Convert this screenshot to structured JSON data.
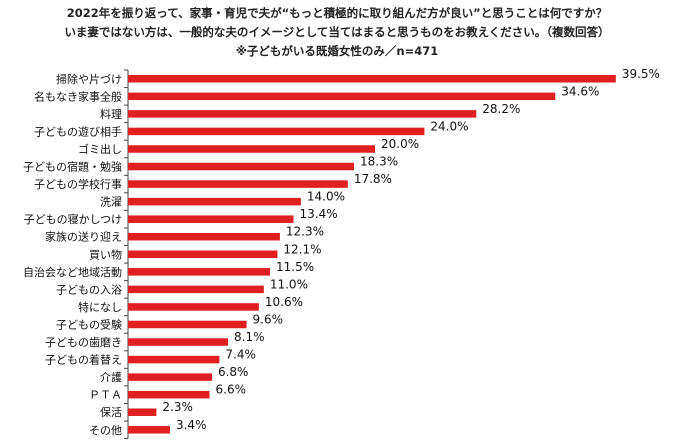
{
  "header": {
    "line1": "2022年を振り返って、家事・育児で夫が“もっと積極的に取り組んだ方が良い”と思うことは何ですか？",
    "line2": "いま妻ではない方は、一般的な夫のイメージとして当てはまると思うものをお教えください。（複数回答）",
    "line3": "※子どもがいる既婚女性のみ／n=471"
  },
  "chart_data": {
    "type": "bar",
    "orientation": "horizontal",
    "bar_color": "#e02020",
    "categories": [
      "掃除や片づけ",
      "名もなき家事全般",
      "料理",
      "子どもの遊び相手",
      "ゴミ出し",
      "子どもの宿題・勉強",
      "子どもの学校行事",
      "洗濯",
      "子どもの寝かしつけ",
      "家族の送り迎え",
      "買い物",
      "自治会など地域活動",
      "子どもの入浴",
      "特になし",
      "子どもの受験",
      "子どもの歯磨き",
      "子どもの着替え",
      "介護",
      "ＰＴＡ",
      "保活",
      "その他"
    ],
    "values": [
      39.5,
      34.6,
      28.2,
      24.0,
      20.0,
      18.3,
      17.8,
      14.0,
      13.4,
      12.3,
      12.1,
      11.5,
      11.0,
      10.6,
      9.6,
      8.1,
      7.4,
      6.8,
      6.6,
      2.3,
      3.4
    ],
    "value_labels": [
      "39.5%",
      "34.6%",
      "28.2%",
      "24.0%",
      "20.0%",
      "18.3%",
      "17.8%",
      "14.0%",
      "13.4%",
      "12.3%",
      "12.1%",
      "11.5%",
      "11.0%",
      "10.6%",
      "9.6%",
      "8.1%",
      "7.4%",
      "6.8%",
      "6.6%",
      "2.3%",
      "3.4%"
    ],
    "xlim": [
      0,
      40
    ],
    "grid": false,
    "legend": "none"
  }
}
